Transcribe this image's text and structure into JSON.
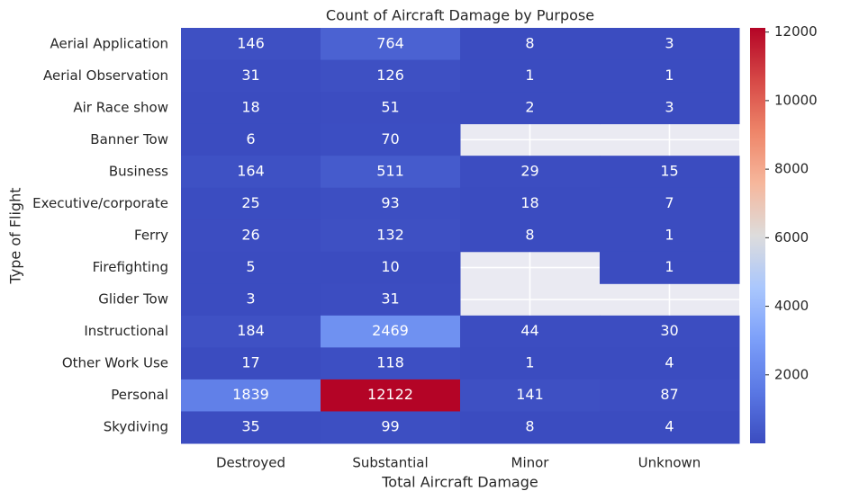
{
  "chart_data": {
    "type": "heatmap",
    "title": "Count of Aircraft Damage by Purpose",
    "x_label": "Total Aircraft Damage",
    "y_label": "Type of Flight",
    "columns": [
      "Destroyed",
      "Substantial",
      "Minor",
      "Unknown"
    ],
    "rows": [
      "Aerial Application",
      "Aerial Observation",
      "Air Race show",
      "Banner Tow",
      "Business",
      "Executive/corporate",
      "Ferry",
      "Firefighting",
      "Glider Tow",
      "Instructional",
      "Other Work Use",
      "Personal",
      "Skydiving"
    ],
    "values": [
      [
        146,
        764,
        8,
        3
      ],
      [
        31,
        126,
        1,
        1
      ],
      [
        18,
        51,
        2,
        3
      ],
      [
        6,
        70,
        null,
        null
      ],
      [
        164,
        511,
        29,
        15
      ],
      [
        25,
        93,
        18,
        7
      ],
      [
        26,
        132,
        8,
        1
      ],
      [
        5,
        10,
        null,
        1
      ],
      [
        3,
        31,
        null,
        null
      ],
      [
        184,
        2469,
        44,
        30
      ],
      [
        17,
        118,
        1,
        4
      ],
      [
        1839,
        12122,
        141,
        87
      ],
      [
        35,
        99,
        8,
        4
      ]
    ],
    "colormap": "coolwarm",
    "clim": [
      1,
      12122
    ],
    "colorbar_ticks": [
      2000,
      4000,
      6000,
      8000,
      10000,
      12000
    ],
    "annotate": true,
    "grid": true
  }
}
